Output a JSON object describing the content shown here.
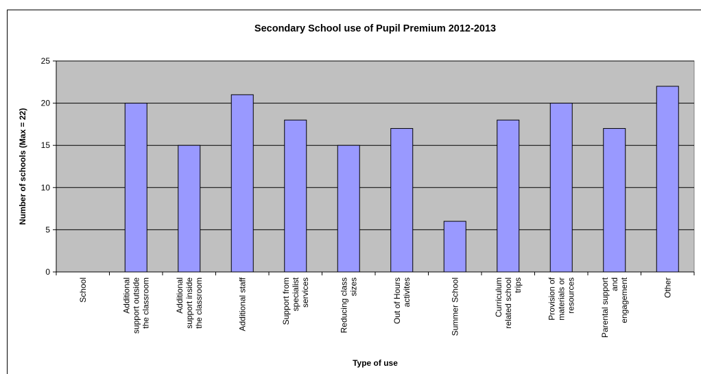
{
  "chart_data": {
    "type": "bar",
    "title": "Secondary School use of Pupil Premium 2012-2013",
    "xlabel": "Type of use",
    "ylabel": "Number of schools (Max = 22)",
    "ylim": [
      0,
      25
    ],
    "yticks": [
      0,
      5,
      10,
      15,
      20,
      25
    ],
    "grid": true,
    "legend": "none",
    "categories": [
      [
        "School"
      ],
      [
        "Additional",
        "support outside",
        "the classroom"
      ],
      [
        "Additional",
        "support inside",
        "the classroom"
      ],
      [
        "Additional staff"
      ],
      [
        "Support from",
        "specialist",
        "services"
      ],
      [
        "Reducing class",
        "sizes"
      ],
      [
        "Out of Hours",
        "activites"
      ],
      [
        "Summer School"
      ],
      [
        "Curriculum",
        "related school",
        "trips"
      ],
      [
        "Provision of",
        "materials or",
        "resources"
      ],
      [
        "Parental support",
        "and",
        "engagement"
      ],
      [
        "Other"
      ]
    ],
    "values": [
      0,
      20,
      15,
      21,
      18,
      15,
      17,
      6,
      18,
      20,
      17,
      22
    ],
    "colors": {
      "plot_area": "#c0c0c0",
      "bar_fill": "#9999ff",
      "bar_stroke": "#000000",
      "grid": "#000000"
    }
  }
}
